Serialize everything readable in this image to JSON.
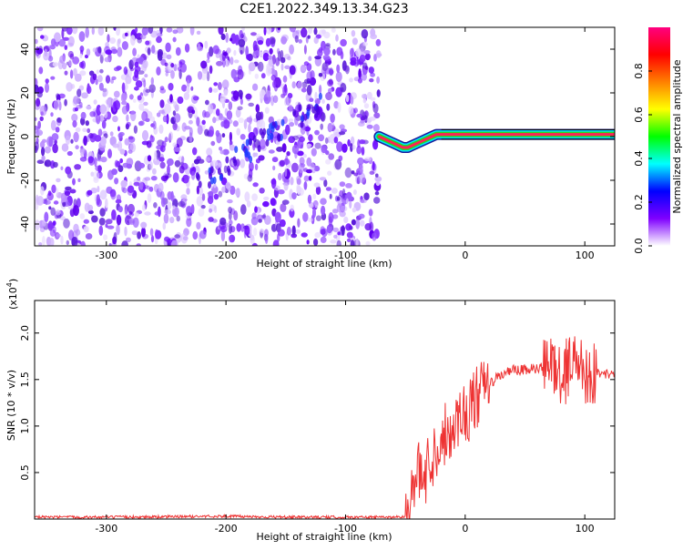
{
  "title": "C2E1.2022.349.13.34.G23",
  "chart_data": [
    {
      "type": "heatmap",
      "xlabel": "Height of straight line (km)",
      "ylabel": "Frequency (Hz)",
      "xlim": [
        -360,
        125
      ],
      "ylim": [
        -50,
        50
      ],
      "x_ticks": [
        -300,
        -200,
        -100,
        0,
        100
      ],
      "y_ticks": [
        -40,
        -20,
        0,
        20,
        40
      ],
      "noise_region_x": [
        -360,
        -72
      ],
      "trace": {
        "x": [
          -72,
          -68,
          -64,
          -60,
          -56,
          -52,
          -48,
          -44,
          -40,
          -36,
          -32,
          -28,
          -24,
          -20,
          -10,
          0,
          10,
          20,
          40,
          60,
          80,
          100,
          125
        ],
        "y": [
          0,
          -1,
          -2,
          -3,
          -4,
          -5,
          -5,
          -4,
          -3,
          -2,
          -1,
          0,
          1,
          1,
          1,
          1,
          1,
          1,
          1,
          1,
          1,
          1,
          1
        ]
      },
      "colorbar": {
        "label": "Normalized spectral amplitude",
        "range": [
          0,
          1
        ],
        "ticks": [
          "0.0",
          "0.2",
          "0.4",
          "0.6",
          "0.8"
        ],
        "tick_values": [
          0,
          0.2,
          0.4,
          0.6,
          0.8
        ],
        "colors": [
          "#ffffff",
          "#7f00ff",
          "#0000ff",
          "#00ffff",
          "#00ff00",
          "#ffff00",
          "#ff8000",
          "#ff0000",
          "#ff0080"
        ]
      }
    },
    {
      "type": "line",
      "xlabel": "Height of straight line (km)",
      "ylabel": "SNR (10 * v/v)",
      "scale_note": "(x10",
      "scale_exp": "4",
      "scale_close": ")",
      "xlim": [
        -360,
        125
      ],
      "ylim": [
        0,
        2.35
      ],
      "x_ticks": [
        -300,
        -200,
        -100,
        0,
        100
      ],
      "y_ticks": [
        0.5,
        1.0,
        1.5,
        2.0
      ],
      "y_tick_labels": [
        "0.5",
        "1.0",
        "1.5",
        "2.0"
      ],
      "color": "#ee3333",
      "series": [
        {
          "x": [
            -360,
            -300,
            -200,
            -150,
            -100,
            -60,
            -50,
            -45,
            -40,
            -35,
            -30,
            -25,
            -20,
            -15,
            -10,
            -5,
            0,
            5,
            10,
            20,
            30,
            40,
            50,
            60,
            70,
            75,
            80,
            85,
            90,
            95,
            100,
            105,
            110,
            115,
            120,
            125
          ],
          "y": [
            0.02,
            0.02,
            0.03,
            0.02,
            0.02,
            0.02,
            0.03,
            0.2,
            0.5,
            0.45,
            0.6,
            0.75,
            0.85,
            0.95,
            1.0,
            1.1,
            1.15,
            1.2,
            1.3,
            1.45,
            1.55,
            1.6,
            1.6,
            1.62,
            1.62,
            1.7,
            1.5,
            1.6,
            1.75,
            1.65,
            1.6,
            1.55,
            1.58,
            1.56,
            1.56,
            1.55
          ]
        }
      ]
    }
  ]
}
